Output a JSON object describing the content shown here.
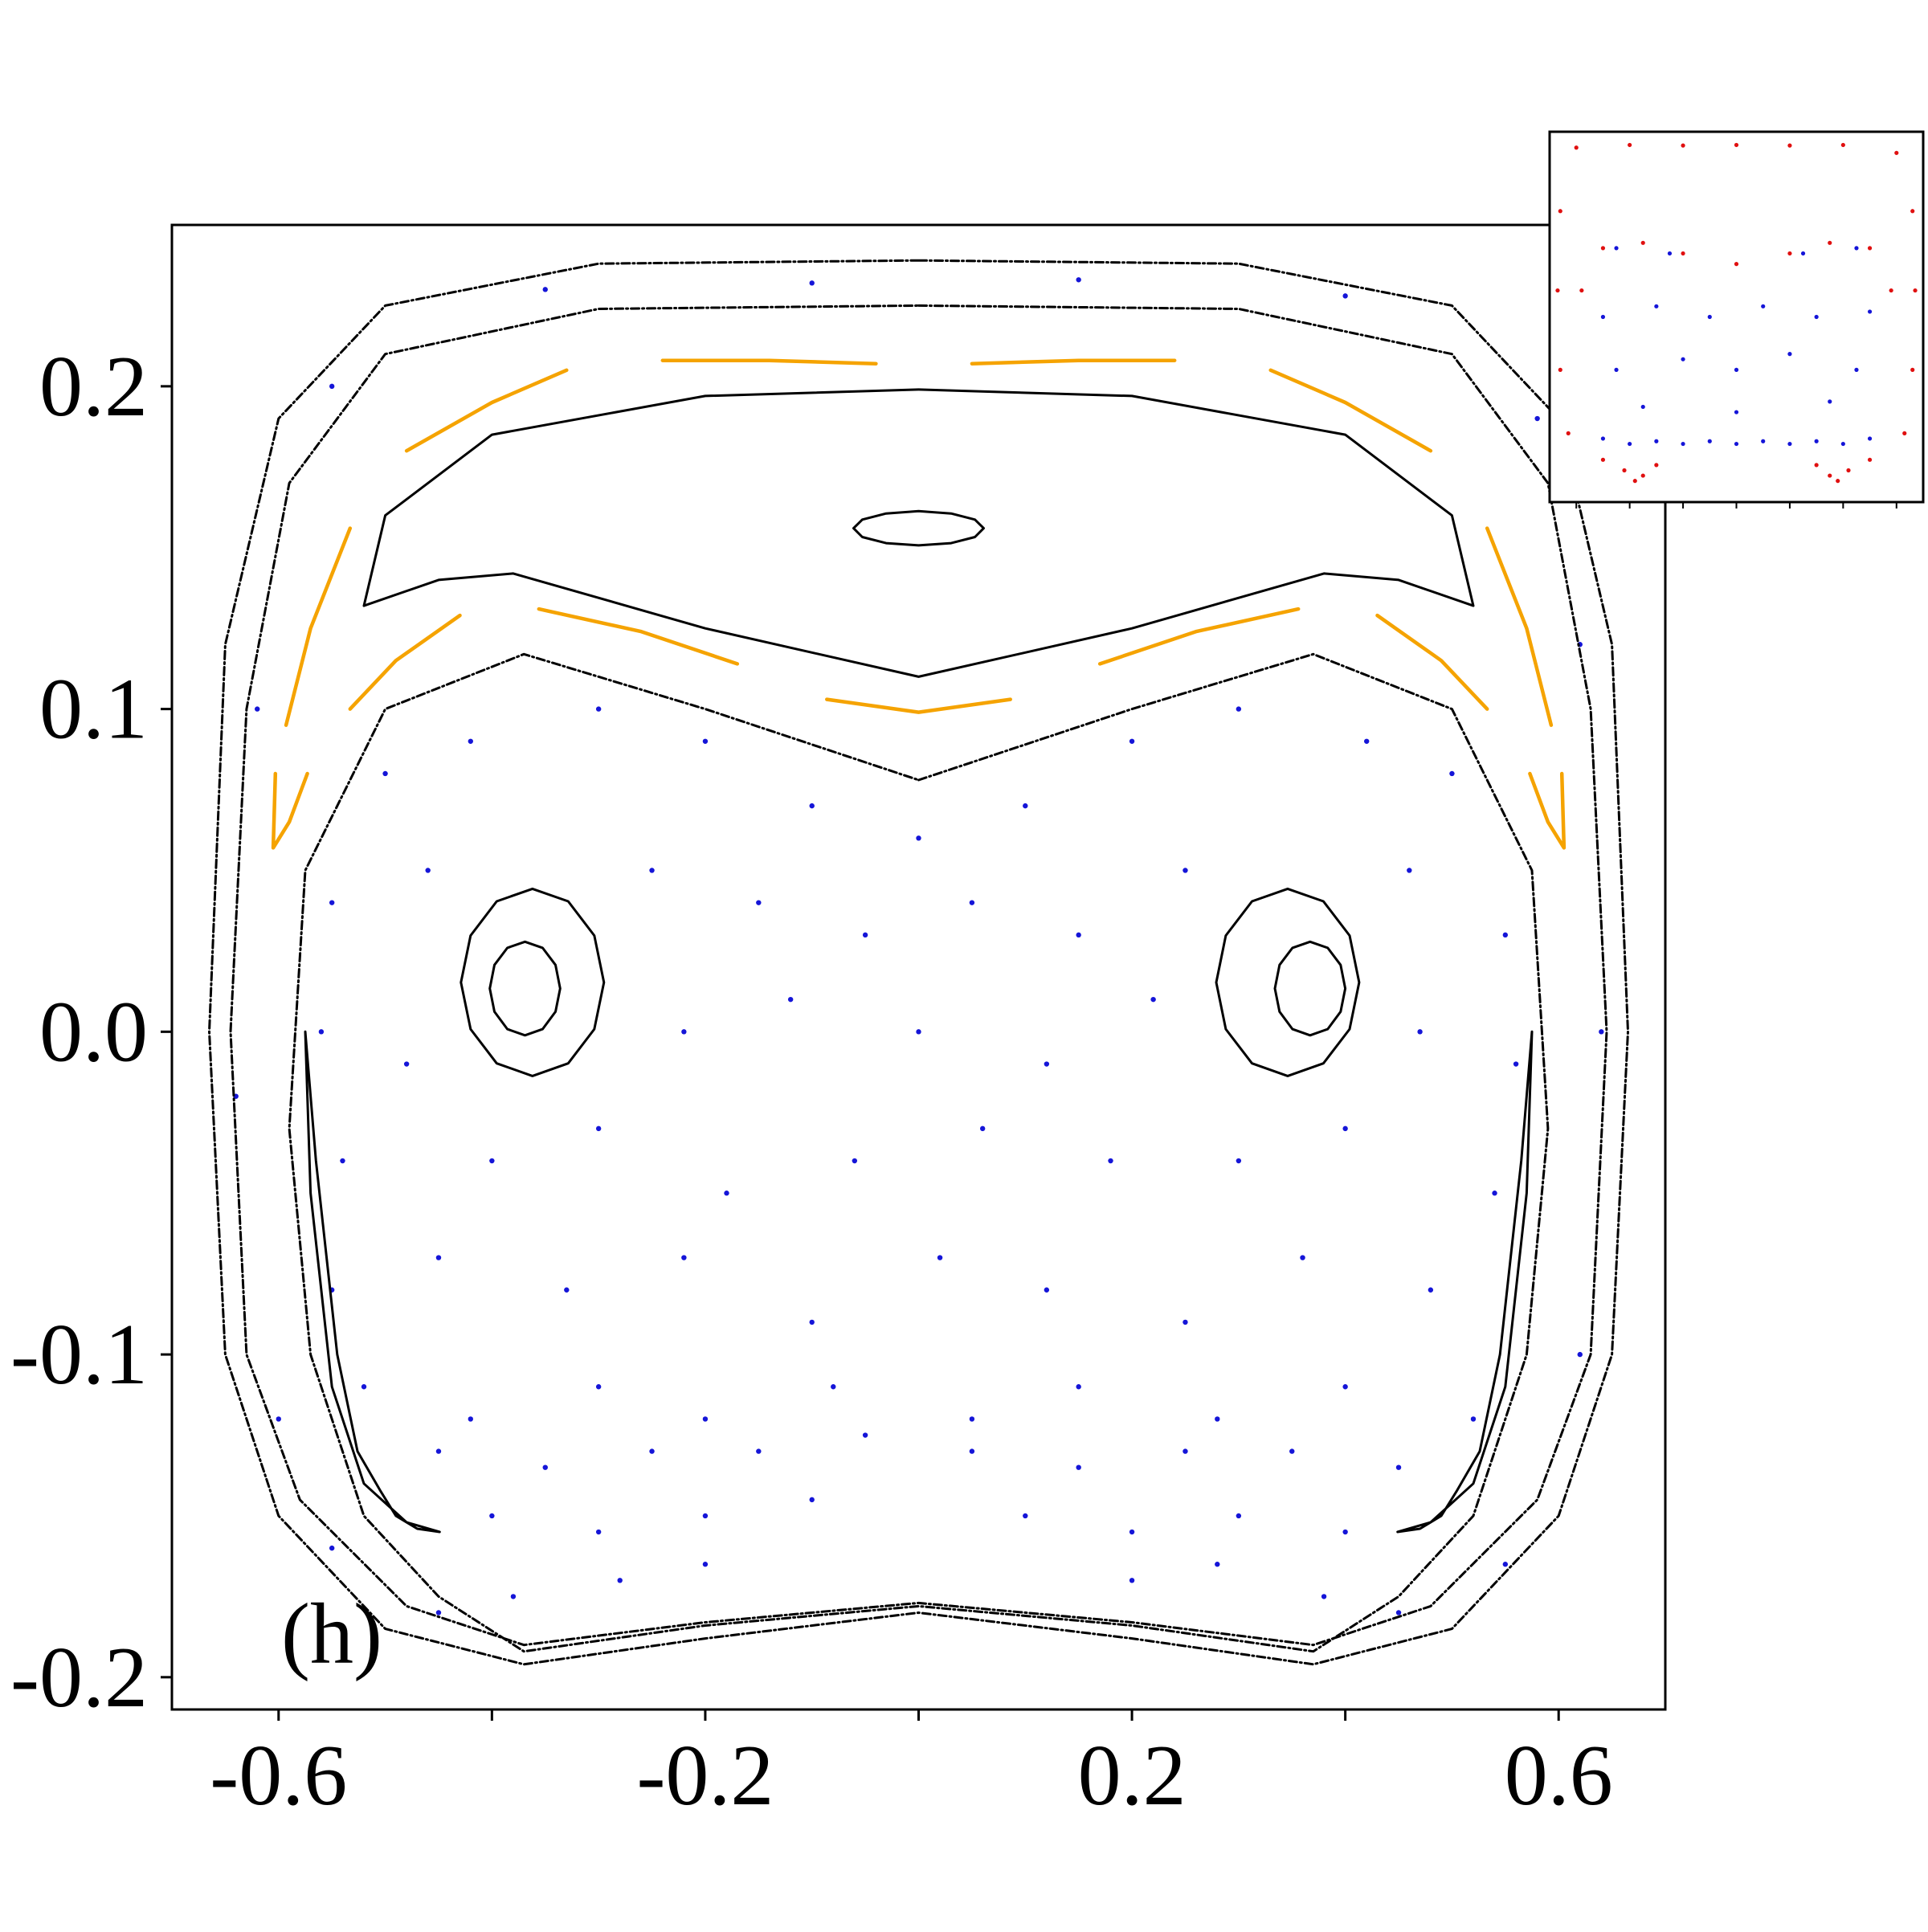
{
  "chart_data": [
    {
      "type": "scatter",
      "annotation": "(h)",
      "xlim": [
        -0.7,
        0.7
      ],
      "ylim": [
        -0.21,
        0.25
      ],
      "xticks": [
        -0.6,
        -0.2,
        0.2,
        0.6
      ],
      "xminor_ticks": [
        -0.4,
        0,
        0.4
      ],
      "yticks": [
        -0.2,
        -0.1,
        {
          "value": 0,
          "label": "0.0"
        },
        0.1,
        0.2
      ],
      "series": [
        {
          "style": "dots",
          "color": "#1515d8",
          "x": [
            -0.5,
            -0.42,
            -0.3,
            -0.2,
            -0.1,
            0,
            0.1,
            0.2,
            0.3,
            0.42,
            0.5,
            -0.55,
            -0.46,
            -0.25,
            -0.15,
            -0.05,
            0.05,
            0.15,
            0.25,
            0.46,
            0.55,
            -0.56,
            -0.48,
            -0.22,
            -0.12,
            0,
            0.12,
            0.22,
            0.47,
            0.56,
            -0.54,
            -0.4,
            -0.3,
            -0.18,
            -0.06,
            0.06,
            0.18,
            0.3,
            0.4,
            0.54,
            -0.55,
            -0.45,
            -0.33,
            -0.22,
            -0.1,
            0.02,
            0.12,
            0.25,
            0.36,
            0.48,
            -0.52,
            -0.42,
            -0.3,
            -0.2,
            -0.08,
            0.05,
            0.15,
            0.28,
            0.4,
            0.52,
            -0.45,
            -0.35,
            -0.25,
            -0.15,
            -0.05,
            0.05,
            0.15,
            0.25,
            0.35,
            0.45,
            -0.4,
            -0.3,
            -0.2,
            -0.1,
            0.1,
            0.2,
            0.3,
            0.4,
            -0.38,
            -0.28,
            -0.2,
            0.2,
            0.28,
            0.38,
            -0.62,
            -0.64,
            -0.6,
            -0.55,
            -0.45,
            0.45,
            0.55,
            0.62,
            0.64,
            0.62,
            -0.55,
            -0.35,
            -0.1,
            0.15,
            0.4,
            0.58
          ],
          "values": [
            0.08,
            0.09,
            0.1,
            0.09,
            0.07,
            0.06,
            0.07,
            0.09,
            0.1,
            0.09,
            0.08,
            0.04,
            0.05,
            0.05,
            0.04,
            0.03,
            0.04,
            0.03,
            0.05,
            0.05,
            0.03,
            0,
            -0.01,
            0,
            0.01,
            0,
            -0.01,
            0.01,
            0,
            -0.01,
            -0.04,
            -0.04,
            -0.03,
            -0.05,
            -0.04,
            -0.03,
            -0.04,
            -0.04,
            -0.03,
            -0.05,
            -0.08,
            -0.07,
            -0.08,
            -0.07,
            -0.09,
            -0.07,
            -0.08,
            -0.09,
            -0.07,
            -0.08,
            -0.11,
            -0.12,
            -0.11,
            -0.12,
            -0.11,
            -0.12,
            -0.11,
            -0.12,
            -0.11,
            -0.12,
            -0.13,
            -0.135,
            -0.13,
            -0.13,
            -0.125,
            -0.13,
            -0.135,
            -0.13,
            -0.13,
            -0.135,
            -0.15,
            -0.155,
            -0.15,
            -0.145,
            -0.15,
            -0.155,
            -0.15,
            -0.155,
            -0.175,
            -0.17,
            -0.165,
            -0.17,
            -0.165,
            -0.175,
            0.1,
            -0.02,
            -0.12,
            -0.16,
            -0.18,
            -0.18,
            -0.165,
            -0.1,
            0,
            0.12,
            0.2,
            0.23,
            0.232,
            0.233,
            0.228,
            0.19
          ]
        },
        {
          "style": "dashed",
          "color": "#000000",
          "x": [
            0,
            0.3,
            0.5,
            0.6,
            0.65,
            0.665,
            0.65,
            0.6,
            0.5,
            0.37,
            0.2,
            0,
            -0.2,
            -0.37,
            -0.5,
            -0.6,
            -0.65,
            -0.665,
            -0.65,
            -0.6,
            -0.5,
            -0.3,
            0
          ],
          "values": [
            0.239,
            0.238,
            0.225,
            0.19,
            0.12,
            0,
            -0.1,
            -0.15,
            -0.185,
            -0.196,
            -0.188,
            -0.18,
            -0.188,
            -0.196,
            -0.185,
            -0.15,
            -0.1,
            0,
            0.12,
            0.19,
            0.225,
            0.238,
            0.239
          ]
        },
        {
          "style": "dashed",
          "color": "#000000",
          "x": [
            0,
            0.3,
            0.5,
            0.59,
            0.63,
            0.645,
            0.63,
            0.58,
            0.48,
            0.37,
            0.2,
            0,
            -0.2,
            -0.37,
            -0.48,
            -0.58,
            -0.63,
            -0.645,
            -0.63,
            -0.59,
            -0.5,
            -0.3,
            0
          ],
          "values": [
            0.225,
            0.224,
            0.21,
            0.17,
            0.1,
            0,
            -0.1,
            -0.145,
            -0.178,
            -0.19,
            -0.183,
            -0.177,
            -0.183,
            -0.19,
            -0.178,
            -0.145,
            -0.1,
            0,
            0.1,
            0.17,
            0.21,
            0.224,
            0.225
          ]
        },
        {
          "style": "dashed",
          "color": "#000000",
          "x": [
            0,
            0.2,
            0.37,
            0.5,
            0.575,
            0.59,
            0.57,
            0.52,
            0.45,
            0.37,
            0.2,
            0,
            -0.2,
            -0.37,
            -0.45,
            -0.52,
            -0.57,
            -0.59,
            -0.575,
            -0.5,
            -0.37,
            -0.2,
            0
          ],
          "values": [
            0.078,
            0.1,
            0.117,
            0.1,
            0.05,
            -0.03,
            -0.1,
            -0.15,
            -0.175,
            -0.192,
            -0.184,
            -0.178,
            -0.184,
            -0.192,
            -0.175,
            -0.15,
            -0.1,
            -0.03,
            0.05,
            0.1,
            0.117,
            0.1,
            0.078
          ]
        },
        {
          "style": "line",
          "color": "#000000",
          "x": [
            -0.52,
            -0.5,
            -0.4,
            -0.2,
            0,
            0.2,
            0.4,
            0.5,
            0.52,
            0.45,
            0.38,
            0.2,
            0,
            -0.2,
            -0.38,
            -0.45,
            -0.52
          ],
          "values": [
            0.132,
            0.16,
            0.185,
            0.197,
            0.199,
            0.197,
            0.185,
            0.16,
            0.132,
            0.14,
            0.142,
            0.125,
            0.11,
            0.125,
            0.142,
            0.14,
            0.132
          ]
        },
        {
          "style": "line",
          "color": "#000000",
          "x": [
            0.061,
            0.0528,
            0.0305,
            0,
            -0.0305,
            -0.0528,
            -0.061,
            -0.0528,
            -0.0305,
            0,
            0.0305,
            0.0528,
            0.061
          ],
          "values": [
            0.156,
            0.1587,
            0.1606,
            0.1613,
            0.1606,
            0.1587,
            0.156,
            0.1533,
            0.1514,
            0.1507,
            0.1514,
            0.1533,
            0.156
          ]
        },
        {
          "style": "line",
          "color": "#000000",
          "x": [
            -0.295,
            -0.304,
            -0.3285,
            -0.362,
            -0.3955,
            -0.42,
            -0.429,
            -0.42,
            -0.3955,
            -0.362,
            -0.3285,
            -0.304,
            -0.295
          ],
          "values": [
            0.0153,
            0.0298,
            0.0404,
            0.0443,
            0.0404,
            0.0298,
            0.0153,
            0.0008,
            -0.0098,
            -0.0137,
            -0.0098,
            0.0008,
            0.0153
          ]
        },
        {
          "style": "line",
          "color": "#000000",
          "x": [
            -0.336,
            -0.3404,
            -0.3525,
            -0.369,
            -0.3855,
            -0.3976,
            -0.402,
            -0.3976,
            -0.3855,
            -0.369,
            -0.3525,
            -0.3404,
            -0.336
          ],
          "values": [
            0.0134,
            0.0207,
            0.026,
            0.0279,
            0.026,
            0.0207,
            0.0134,
            0.0062,
            0.0008,
            -0.0011,
            0.0008,
            0.0062,
            0.0134
          ]
        },
        {
          "style": "line",
          "color": "#000000",
          "x": [
            0.413,
            0.404,
            0.3795,
            0.346,
            0.3125,
            0.288,
            0.279,
            0.288,
            0.3125,
            0.346,
            0.3795,
            0.404,
            0.413
          ],
          "values": [
            0.0153,
            0.0298,
            0.0404,
            0.0443,
            0.0404,
            0.0298,
            0.0153,
            0.0008,
            -0.0098,
            -0.0137,
            -0.0098,
            0.0008,
            0.0153
          ]
        },
        {
          "style": "line",
          "color": "#000000",
          "x": [
            0.4,
            0.3956,
            0.3835,
            0.367,
            0.3505,
            0.3384,
            0.334,
            0.3384,
            0.3505,
            0.367,
            0.3835,
            0.3956,
            0.4
          ],
          "values": [
            0.0134,
            0.0207,
            0.026,
            0.0279,
            0.026,
            0.0207,
            0.0134,
            0.0062,
            0.0008,
            -0.0011,
            0.0008,
            0.0062,
            0.0134
          ]
        },
        {
          "style": "line",
          "color": "#000000",
          "x": [
            -0.526,
            -0.545,
            -0.565,
            -0.575,
            -0.57,
            -0.55,
            -0.52,
            -0.48,
            -0.449,
            -0.47,
            -0.49,
            -0.505,
            -0.526
          ],
          "values": [
            -0.13,
            -0.1,
            -0.04,
            0,
            -0.05,
            -0.11,
            -0.14,
            -0.152,
            -0.155,
            -0.154,
            -0.15,
            -0.142,
            -0.13
          ]
        },
        {
          "style": "line",
          "color": "#000000",
          "x": [
            0.526,
            0.545,
            0.565,
            0.575,
            0.57,
            0.55,
            0.52,
            0.48,
            0.449,
            0.47,
            0.49,
            0.505,
            0.526
          ],
          "values": [
            -0.13,
            -0.1,
            -0.04,
            0,
            -0.05,
            -0.11,
            -0.14,
            -0.152,
            -0.155,
            -0.154,
            -0.15,
            -0.142,
            -0.13
          ]
        },
        {
          "style": "line",
          "color": "#f5a300",
          "x": [
            -0.48,
            -0.4,
            -0.33,
            null,
            -0.24,
            -0.14,
            -0.04,
            null,
            0.05,
            0.15,
            0.24,
            null,
            0.33,
            0.4,
            0.48,
            null,
            0.533,
            0.57,
            0.593,
            null,
            0.573,
            0.59,
            0.605,
            0.603,
            null,
            0.43,
            0.49,
            0.533,
            null,
            0.17,
            0.26,
            0.356,
            null,
            -0.086,
            0,
            0.086,
            null,
            -0.356,
            -0.26,
            -0.17,
            null,
            -0.533,
            -0.49,
            -0.43,
            null,
            -0.603,
            -0.605,
            -0.59,
            -0.573,
            null,
            -0.593,
            -0.57,
            -0.533
          ],
          "values": [
            0.18,
            0.195,
            0.205,
            null,
            0.208,
            0.208,
            0.207,
            null,
            0.207,
            0.208,
            0.208,
            null,
            0.205,
            0.195,
            0.18,
            null,
            0.156,
            0.125,
            0.095,
            null,
            0.08,
            0.065,
            0.057,
            0.08,
            null,
            0.129,
            0.115,
            0.1,
            null,
            0.114,
            0.124,
            0.131,
            null,
            0.103,
            0.099,
            0.103,
            null,
            0.131,
            0.124,
            0.114,
            null,
            0.1,
            0.115,
            0.129,
            null,
            0.08,
            0.057,
            0.065,
            0.08,
            null,
            0.095,
            0.125,
            0.156
          ]
        }
      ]
    },
    {
      "type": "scatter",
      "xlim": [
        -0.7,
        0.7
      ],
      "ylim": [
        -0.25,
        0.45
      ],
      "xminor_ticks": [
        -0.6,
        -0.4,
        -0.2,
        0,
        0.2,
        0.4,
        0.6
      ],
      "series": [
        {
          "style": "dots",
          "color": "#1515d8",
          "x": [
            -0.45,
            -0.25,
            0.25,
            0.45,
            -0.5,
            -0.3,
            -0.1,
            0.1,
            0.3,
            0.5,
            -0.45,
            -0.2,
            0,
            0.2,
            0.45,
            -0.35,
            0,
            0.35,
            -0.5,
            -0.4,
            -0.3,
            -0.2,
            -0.1,
            0,
            0.1,
            0.2,
            0.3,
            0.4,
            0.5
          ],
          "values": [
            0.23,
            0.22,
            0.22,
            0.23,
            0.1,
            0.12,
            0.1,
            0.12,
            0.1,
            0.11,
            0,
            0.02,
            0,
            0.03,
            0,
            -0.07,
            -0.08,
            -0.06,
            -0.13,
            -0.14,
            -0.135,
            -0.14,
            -0.135,
            -0.14,
            -0.135,
            -0.14,
            -0.135,
            -0.14,
            -0.13
          ]
        },
        {
          "style": "dots",
          "color": "#e01010",
          "x": [
            -0.6,
            -0.4,
            -0.2,
            0,
            0.2,
            0.4,
            0.6,
            -0.66,
            -0.67,
            -0.66,
            -0.63,
            0.66,
            0.67,
            0.66,
            0.63,
            -0.5,
            -0.42,
            -0.35,
            -0.3,
            -0.38,
            0.3,
            0.35,
            0.42,
            0.5,
            0.38,
            -0.5,
            -0.35,
            -0.2,
            0,
            0.2,
            0.35,
            0.5,
            -0.58,
            0.58
          ],
          "values": [
            0.42,
            0.425,
            0.424,
            0.425,
            0.424,
            0.425,
            0.41,
            0.3,
            0.15,
            0,
            -0.12,
            0.3,
            0.15,
            0,
            -0.12,
            -0.17,
            -0.19,
            -0.2,
            -0.18,
            -0.21,
            -0.18,
            -0.2,
            -0.19,
            -0.17,
            -0.21,
            0.23,
            0.24,
            0.22,
            0.2,
            0.22,
            0.24,
            0.23,
            0.15,
            0.15
          ]
        }
      ]
    }
  ]
}
